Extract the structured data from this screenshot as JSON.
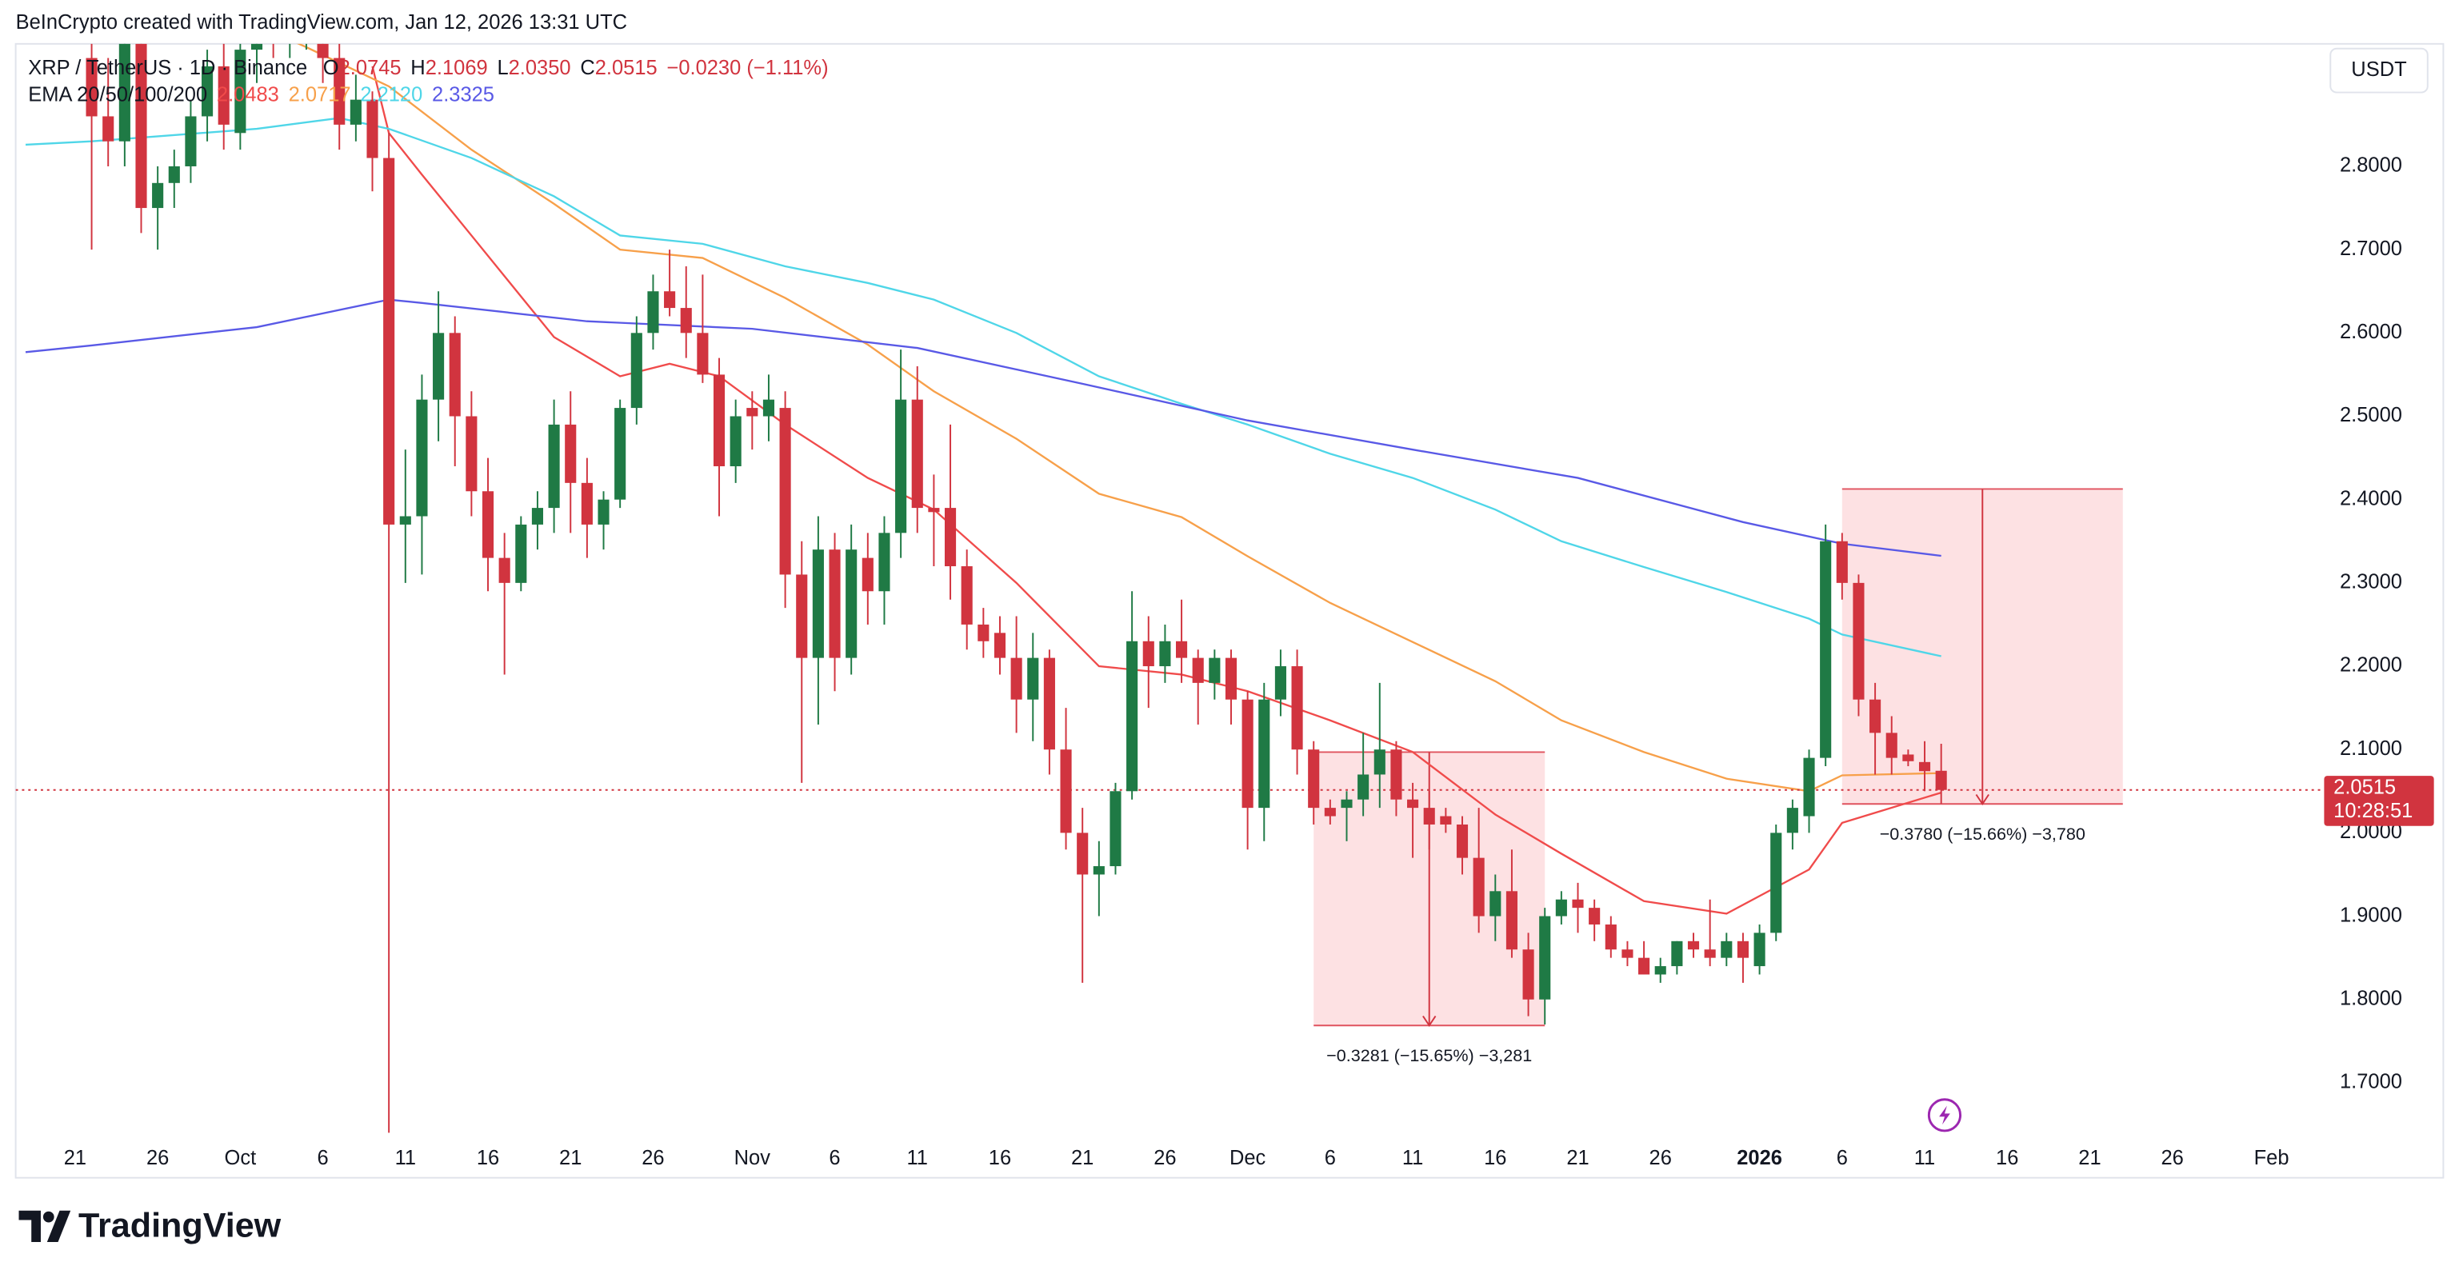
{
  "header": {
    "watermark": "BeInCrypto created with TradingView.com, Jan 12, 2026 13:31 UTC",
    "brand": "TradingView"
  },
  "chart_data": {
    "type": "candlestick",
    "symbol": "XRP / TetherUS · 1D · Binance",
    "ohlc_legend": [
      {
        "key": "O",
        "value": "2.0745"
      },
      {
        "key": "H",
        "value": "2.1069"
      },
      {
        "key": "L",
        "value": "2.0350"
      },
      {
        "key": "C",
        "value": "2.0515"
      }
    ],
    "change": "−0.0230 (−1.11%)",
    "indicator": "EMA 20/50/100/200",
    "currency": "USDT",
    "up_color": "#1f7a45",
    "down_color": "#d1343f",
    "open": [
      2.93,
      2.86,
      2.83,
      2.95,
      2.75,
      2.78,
      2.8,
      2.86,
      2.92,
      2.84,
      2.94,
      2.99,
      2.96,
      2.97,
      3.0,
      2.93,
      2.85,
      2.88,
      2.81,
      2.37,
      2.38,
      2.52,
      2.6,
      2.5,
      2.41,
      2.33,
      2.3,
      2.37,
      2.39,
      2.49,
      2.42,
      2.37,
      2.4,
      2.51,
      2.6,
      2.65,
      2.63,
      2.6,
      2.55,
      2.44,
      2.51,
      2.5,
      2.51,
      2.31,
      2.21,
      2.34,
      2.21,
      2.33,
      2.29,
      2.36,
      2.52,
      2.39,
      2.39,
      2.32,
      2.25,
      2.24,
      2.21,
      2.16,
      2.21,
      2.1,
      2.0,
      1.95,
      1.96,
      2.05,
      2.23,
      2.2,
      2.23,
      2.21,
      2.18,
      2.21,
      2.16,
      2.03,
      2.16,
      2.2,
      2.1,
      2.03,
      2.03,
      2.04,
      2.07,
      2.1,
      2.04,
      2.03,
      2.02,
      2.01,
      1.97,
      1.9,
      1.93,
      1.86,
      1.8,
      1.9,
      1.92,
      1.91,
      1.89,
      1.86,
      1.85,
      1.83,
      1.84,
      1.87,
      1.86,
      1.85,
      1.87,
      1.84,
      1.88,
      2.0,
      2.02,
      2.09,
      2.35,
      2.3,
      2.16,
      2.12,
      2.094,
      2.085,
      2.0745
    ],
    "high": [
      2.99,
      2.93,
      2.98,
      2.97,
      2.8,
      2.82,
      2.88,
      2.94,
      2.95,
      2.95,
      3.03,
      3.02,
      2.99,
      3.04,
      3.01,
      2.95,
      2.91,
      2.89,
      2.84,
      2.46,
      2.55,
      2.65,
      2.62,
      2.53,
      2.45,
      2.36,
      2.38,
      2.41,
      2.52,
      2.53,
      2.45,
      2.41,
      2.52,
      2.62,
      2.67,
      2.7,
      2.68,
      2.67,
      2.57,
      2.52,
      2.53,
      2.55,
      2.53,
      2.35,
      2.38,
      2.36,
      2.37,
      2.36,
      2.38,
      2.58,
      2.56,
      2.43,
      2.49,
      2.34,
      2.27,
      2.26,
      2.26,
      2.24,
      2.22,
      2.15,
      2.03,
      1.99,
      2.06,
      2.29,
      2.26,
      2.25,
      2.28,
      2.22,
      2.22,
      2.22,
      2.17,
      2.18,
      2.22,
      2.22,
      2.11,
      2.04,
      2.05,
      2.12,
      2.18,
      2.11,
      2.06,
      2.05,
      2.03,
      2.02,
      2.03,
      1.95,
      1.98,
      1.88,
      1.91,
      1.93,
      1.94,
      1.92,
      1.9,
      1.87,
      1.87,
      1.85,
      1.87,
      1.88,
      1.92,
      1.88,
      1.88,
      1.89,
      2.01,
      2.04,
      2.1,
      2.37,
      2.36,
      2.31,
      2.18,
      2.14,
      2.1,
      2.11,
      2.1069
    ],
    "low": [
      2.7,
      2.8,
      2.8,
      2.72,
      2.7,
      2.75,
      2.78,
      2.83,
      2.82,
      2.82,
      2.9,
      2.93,
      2.93,
      2.94,
      2.9,
      2.82,
      2.83,
      2.77,
      1.64,
      2.3,
      2.31,
      2.47,
      2.44,
      2.38,
      2.29,
      2.19,
      2.29,
      2.34,
      2.36,
      2.36,
      2.33,
      2.34,
      2.39,
      2.49,
      2.58,
      2.62,
      2.57,
      2.54,
      2.38,
      2.42,
      2.46,
      2.47,
      2.27,
      2.06,
      2.13,
      2.17,
      2.19,
      2.25,
      2.25,
      2.33,
      2.36,
      2.32,
      2.28,
      2.22,
      2.21,
      2.19,
      2.12,
      2.11,
      2.07,
      1.98,
      1.82,
      1.9,
      1.95,
      2.04,
      2.15,
      2.18,
      2.18,
      2.13,
      2.16,
      2.13,
      1.98,
      1.99,
      2.14,
      2.07,
      2.01,
      2.01,
      1.99,
      2.02,
      2.03,
      2.02,
      1.97,
      1.98,
      2.0,
      1.95,
      1.88,
      1.87,
      1.85,
      1.78,
      1.77,
      1.89,
      1.88,
      1.87,
      1.85,
      1.84,
      1.83,
      1.82,
      1.83,
      1.85,
      1.84,
      1.84,
      1.82,
      1.83,
      1.87,
      1.98,
      2.0,
      2.08,
      2.28,
      2.14,
      2.07,
      2.07,
      2.08,
      2.05,
      2.035
    ],
    "close": [
      2.86,
      2.83,
      2.95,
      2.75,
      2.78,
      2.8,
      2.86,
      2.92,
      2.85,
      2.94,
      2.99,
      2.96,
      2.97,
      3.0,
      2.93,
      2.85,
      2.88,
      2.81,
      2.37,
      2.38,
      2.52,
      2.6,
      2.5,
      2.41,
      2.33,
      2.3,
      2.37,
      2.39,
      2.49,
      2.42,
      2.37,
      2.4,
      2.51,
      2.6,
      2.65,
      2.63,
      2.6,
      2.55,
      2.44,
      2.5,
      2.5,
      2.52,
      2.31,
      2.21,
      2.34,
      2.21,
      2.34,
      2.29,
      2.36,
      2.52,
      2.39,
      2.385,
      2.32,
      2.25,
      2.23,
      2.21,
      2.16,
      2.21,
      2.1,
      2.0,
      1.95,
      1.96,
      2.05,
      2.23,
      2.2,
      2.23,
      2.21,
      2.18,
      2.21,
      2.16,
      2.03,
      2.16,
      2.2,
      2.1,
      2.03,
      2.02,
      2.04,
      2.07,
      2.1,
      2.04,
      2.03,
      2.01,
      2.01,
      1.97,
      1.9,
      1.93,
      1.86,
      1.8,
      1.9,
      1.92,
      1.91,
      1.89,
      1.86,
      1.85,
      1.83,
      1.84,
      1.87,
      1.86,
      1.85,
      1.87,
      1.85,
      1.88,
      2.0,
      2.03,
      2.09,
      2.35,
      2.3,
      2.16,
      2.12,
      2.09,
      2.086,
      2.074,
      2.0515
    ],
    "series": [
      {
        "color": "#f04b4b",
        "legend_value": "2.0483",
        "x": [
          17,
          18,
          20,
          23,
          28,
          32,
          35,
          38,
          42,
          47,
          51,
          56,
          61,
          66,
          70,
          75,
          80,
          85,
          89,
          94,
          99,
          104,
          106,
          112
        ],
        "values": [
          2.92,
          2.84,
          2.79,
          2.717,
          2.595,
          2.548,
          2.563,
          2.548,
          2.49,
          2.426,
          2.388,
          2.3,
          2.2,
          2.19,
          2.17,
          2.135,
          2.097,
          2.022,
          1.975,
          1.918,
          1.903,
          1.956,
          2.012,
          2.0483
        ]
      },
      {
        "color": "#f7a04a",
        "legend_value": "2.0717",
        "x": [
          10,
          13,
          18,
          23,
          28,
          32,
          37,
          42,
          47,
          51,
          56,
          61,
          66,
          70,
          75,
          80,
          85,
          89,
          94,
          99,
          104,
          106,
          112
        ],
        "values": [
          2.97,
          2.943,
          2.896,
          2.82,
          2.755,
          2.7,
          2.69,
          2.642,
          2.586,
          2.53,
          2.473,
          2.407,
          2.379,
          2.332,
          2.276,
          2.229,
          2.182,
          2.135,
          2.097,
          2.065,
          2.05,
          2.069,
          2.0717
        ]
      },
      {
        "color": "#4fd6e8",
        "legend_value": "2.2120",
        "x": [
          -4,
          0,
          10,
          15,
          18,
          23,
          28,
          32,
          37,
          42,
          47,
          51,
          56,
          61,
          66,
          70,
          75,
          80,
          85,
          89,
          94,
          99,
          104,
          106,
          112
        ],
        "values": [
          2.826,
          2.83,
          2.845,
          2.858,
          2.845,
          2.81,
          2.764,
          2.717,
          2.707,
          2.68,
          2.66,
          2.64,
          2.6,
          2.548,
          2.515,
          2.49,
          2.455,
          2.426,
          2.388,
          2.35,
          2.319,
          2.289,
          2.257,
          2.238,
          2.212
        ]
      },
      {
        "color": "#5959e6",
        "legend_value": "2.3325",
        "x": [
          -4,
          0,
          10,
          18,
          20,
          30,
          40,
          50,
          60,
          70,
          80,
          90,
          100,
          106,
          112
        ],
        "values": [
          2.577,
          2.585,
          2.607,
          2.64,
          2.636,
          2.614,
          2.605,
          2.582,
          2.539,
          2.495,
          2.46,
          2.426,
          2.373,
          2.347,
          2.3325
        ]
      }
    ],
    "measures": [
      {
        "x": [
          74,
          88
        ],
        "from": 2.0969,
        "to": 1.7688,
        "label": "−0.3281 (−15.65%) −3,281"
      },
      {
        "x": [
          106,
          123
        ],
        "from": 2.4127,
        "to": 2.0347,
        "label": "−0.3780 (−15.66%) −3,780"
      }
    ],
    "last_price": {
      "value": 2.0515,
      "label": "2.0515",
      "countdown": "10:28:51"
    },
    "xlim": [
      -4.6,
      135
    ],
    "ylim": [
      1.633,
      2.947
    ],
    "grid": false,
    "xticks": [
      {
        "value": -1,
        "label": "21"
      },
      {
        "value": 4,
        "label": "26"
      },
      {
        "value": 9,
        "label": "Oct"
      },
      {
        "value": 14,
        "label": "6"
      },
      {
        "value": 19,
        "label": "11"
      },
      {
        "value": 24,
        "label": "16"
      },
      {
        "value": 29,
        "label": "21"
      },
      {
        "value": 34,
        "label": "26"
      },
      {
        "value": 40,
        "label": "Nov"
      },
      {
        "value": 45,
        "label": "6"
      },
      {
        "value": 50,
        "label": "11"
      },
      {
        "value": 55,
        "label": "16"
      },
      {
        "value": 60,
        "label": "21"
      },
      {
        "value": 65,
        "label": "26"
      },
      {
        "value": 70,
        "label": "Dec"
      },
      {
        "value": 75,
        "label": "6"
      },
      {
        "value": 80,
        "label": "11"
      },
      {
        "value": 85,
        "label": "16"
      },
      {
        "value": 90,
        "label": "21"
      },
      {
        "value": 95,
        "label": "26"
      },
      {
        "value": 101,
        "label": "2026"
      },
      {
        "value": 106,
        "label": "6"
      },
      {
        "value": 111,
        "label": "11"
      },
      {
        "value": 116,
        "label": "16"
      },
      {
        "value": 121,
        "label": "21"
      },
      {
        "value": 126,
        "label": "26"
      },
      {
        "value": 132,
        "label": "Feb"
      }
    ],
    "yticks": [
      {
        "value": 1.7,
        "label": "1.7000"
      },
      {
        "value": 1.8,
        "label": "1.8000"
      },
      {
        "value": 1.9,
        "label": "1.9000"
      },
      {
        "value": 2.0,
        "label": "2.0000"
      },
      {
        "value": 2.1,
        "label": "2.1000"
      },
      {
        "value": 2.2,
        "label": "2.2000"
      },
      {
        "value": 2.3,
        "label": "2.3000"
      },
      {
        "value": 2.4,
        "label": "2.4000"
      },
      {
        "value": 2.5,
        "label": "2.5000"
      },
      {
        "value": 2.6,
        "label": "2.6000"
      },
      {
        "value": 2.7,
        "label": "2.7000"
      },
      {
        "value": 2.8,
        "label": "2.8000"
      }
    ]
  }
}
